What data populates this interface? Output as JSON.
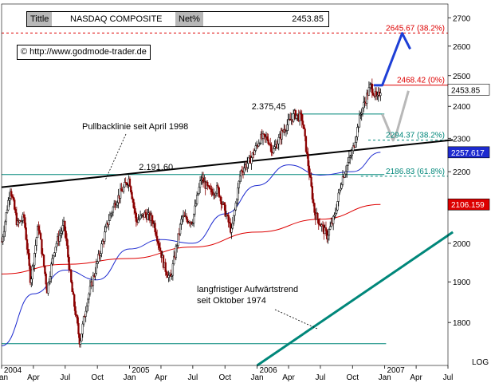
{
  "header": {
    "title_tag": "Tittle",
    "title_name": "NASDAQ COMPOSITE",
    "net_tag": "Net%",
    "last_value": "2453.85"
  },
  "copyright": "© http://www.godmode-trader.de",
  "colors": {
    "candle_up": "#000000",
    "candle_down": "#8b0000",
    "ma_short": "#1e2bd0",
    "ma_long": "#dd0000",
    "trendline": "#000000",
    "long_trend": "#00877a",
    "projection": "#1e3fd6",
    "alt_projection": "#b8b8b8",
    "resistance_target": "#dd0000",
    "fib_lines": "#00877a",
    "axis_text": "#000000"
  },
  "chart_data": {
    "type": "candlestick",
    "title": "NASDAQ COMPOSITE",
    "y_scale": "log",
    "ylim": [
      1700,
      2750
    ],
    "y_ticks": [
      1800,
      1900,
      2000,
      2100,
      2200,
      2300,
      2400,
      2500,
      2600,
      2700
    ],
    "y_tick_labels": [
      "1800",
      "1900",
      "2000",
      "2100",
      "2200",
      "2300",
      "2400",
      "2500",
      "2600",
      "2700"
    ],
    "y_axis_extra_label": "LOG",
    "x_range": [
      "2004-01",
      "2007-07"
    ],
    "x_ticks": [
      {
        "date": "2004-01",
        "label": "Jan",
        "year": "2004"
      },
      {
        "date": "2004-04",
        "label": "Apr"
      },
      {
        "date": "2004-07",
        "label": "Jul"
      },
      {
        "date": "2004-10",
        "label": "Oct"
      },
      {
        "date": "2005-01",
        "label": "Jan",
        "year": "2005"
      },
      {
        "date": "2005-04",
        "label": "Apr"
      },
      {
        "date": "2005-07",
        "label": "Jul"
      },
      {
        "date": "2005-10",
        "label": "Oct"
      },
      {
        "date": "2006-01",
        "label": "Jan",
        "year": "2006"
      },
      {
        "date": "2006-04",
        "label": "Apr"
      },
      {
        "date": "2006-07",
        "label": "Jul"
      },
      {
        "date": "2006-10",
        "label": "Oct"
      },
      {
        "date": "2007-01",
        "label": "Jan",
        "year": "2007"
      },
      {
        "date": "2007-04",
        "label": "Apr"
      },
      {
        "date": "2007-07",
        "label": "Jul"
      }
    ],
    "price_path": [
      [
        "2004-01-02",
        2005
      ],
      [
        "2004-01-26",
        2153
      ],
      [
        "2004-02-15",
        2050
      ],
      [
        "2004-03-05",
        2070
      ],
      [
        "2004-03-24",
        1900
      ],
      [
        "2004-04-15",
        2050
      ],
      [
        "2004-05-10",
        1880
      ],
      [
        "2004-06-01",
        1990
      ],
      [
        "2004-06-28",
        2050
      ],
      [
        "2004-07-20",
        1880
      ],
      [
        "2004-08-12",
        1752
      ],
      [
        "2004-09-01",
        1850
      ],
      [
        "2004-10-01",
        1950
      ],
      [
        "2004-11-01",
        2060
      ],
      [
        "2004-11-20",
        2110
      ],
      [
        "2004-12-31",
        2180
      ],
      [
        "2005-01-20",
        2060
      ],
      [
        "2005-02-15",
        2080
      ],
      [
        "2005-03-10",
        2060
      ],
      [
        "2005-04-10",
        1940
      ],
      [
        "2005-04-28",
        1905
      ],
      [
        "2005-05-31",
        2070
      ],
      [
        "2005-06-30",
        2060
      ],
      [
        "2005-07-25",
        2180
      ],
      [
        "2005-08-20",
        2140
      ],
      [
        "2005-09-10",
        2150
      ],
      [
        "2005-10-20",
        2030
      ],
      [
        "2005-11-15",
        2200
      ],
      [
        "2005-12-15",
        2240
      ],
      [
        "2006-01-10",
        2300
      ],
      [
        "2006-01-31",
        2300
      ],
      [
        "2006-02-15",
        2260
      ],
      [
        "2006-03-20",
        2330
      ],
      [
        "2006-04-19",
        2375
      ],
      [
        "2006-05-10",
        2360
      ],
      [
        "2006-06-01",
        2180
      ],
      [
        "2006-06-15",
        2080
      ],
      [
        "2006-07-20",
        2020
      ],
      [
        "2006-08-10",
        2070
      ],
      [
        "2006-09-01",
        2180
      ],
      [
        "2006-10-01",
        2260
      ],
      [
        "2006-10-25",
        2380
      ],
      [
        "2006-11-22",
        2468
      ],
      [
        "2006-12-10",
        2420
      ],
      [
        "2006-12-20",
        2453.85
      ]
    ],
    "moving_averages": [
      {
        "name": "short MA",
        "color": "#1e2bd0",
        "points": [
          [
            "2004-01-01",
            1745
          ],
          [
            "2004-04-01",
            1870
          ],
          [
            "2004-07-01",
            1930
          ],
          [
            "2004-10-01",
            1905
          ],
          [
            "2005-01-01",
            1985
          ],
          [
            "2005-04-01",
            2010
          ],
          [
            "2005-07-01",
            2000
          ],
          [
            "2005-10-01",
            2080
          ],
          [
            "2006-01-01",
            2160
          ],
          [
            "2006-04-01",
            2220
          ],
          [
            "2006-07-01",
            2190
          ],
          [
            "2006-10-01",
            2200
          ],
          [
            "2006-12-20",
            2257.617
          ]
        ]
      },
      {
        "name": "long MA",
        "color": "#dd0000",
        "points": [
          [
            "2004-01-01",
            1920
          ],
          [
            "2004-07-01",
            1945
          ],
          [
            "2005-01-01",
            1960
          ],
          [
            "2005-07-01",
            1990
          ],
          [
            "2006-01-01",
            2030
          ],
          [
            "2006-07-01",
            2065
          ],
          [
            "2006-12-20",
            2106.159
          ]
        ]
      }
    ],
    "axis_value_tags": [
      {
        "label": "2453.85",
        "value": 2453.85,
        "bg": "#ffffff",
        "fg": "#000000"
      },
      {
        "label": "2257.617",
        "value": 2257.617,
        "bg": "#1e2bd0",
        "fg": "#ffffff"
      },
      {
        "label": "2106.159",
        "value": 2106.159,
        "bg": "#dd0000",
        "fg": "#ffffff"
      }
    ],
    "horizontal_levels": [
      {
        "label": "2645.67 (38.2%)",
        "value": 2645.67,
        "color": "#dd0000",
        "style": "dashed",
        "from": "2004-01-01"
      },
      {
        "label": "2468.42 (0%)",
        "value": 2468.42,
        "color": "#dd0000",
        "style": "solid",
        "from": "2006-11-20"
      },
      {
        "label": "2294.37 (38.2%)",
        "value": 2294.37,
        "color": "#00877a",
        "style": "dashed",
        "from": "2006-11-15"
      },
      {
        "label": "2186.83 (61.8%)",
        "value": 2186.83,
        "color": "#00877a",
        "style": "dashed",
        "from": "2006-10-25"
      }
    ],
    "resistance_lines": [
      {
        "label": "2.375,45",
        "value": 2375.45,
        "from": "2006-04-10",
        "to": "2006-12-31"
      },
      {
        "label": "2.191,60",
        "value": 2191.6,
        "from": "2004-01-01",
        "to": "2006-12-31"
      }
    ],
    "bottom_line": {
      "value": 1750,
      "from": "2004-01-01",
      "to": "2007-01-05"
    },
    "trendlines": [
      {
        "label": "Pullbacklinie seit April 1998",
        "color": "#000000",
        "from": [
          "2004-01-01",
          2155
        ],
        "to": [
          "2007-07-15",
          2295
        ]
      },
      {
        "label": "langfristiger Aufwärtstrend seit Oktober 1974",
        "color": "#00877a",
        "from": [
          "2006-01-01",
          1700
        ],
        "to": [
          "2007-07-15",
          2030
        ]
      }
    ],
    "projections": [
      {
        "name": "blue scenario",
        "color": "#1e3fd6",
        "points": [
          [
            "2006-12-01",
            2468
          ],
          [
            "2006-12-25",
            2468
          ],
          [
            "2007-02-20",
            2645
          ],
          [
            "2007-03-15",
            2590
          ]
        ]
      },
      {
        "name": "grey scenario",
        "color": "#b8b8b8",
        "points": [
          [
            "2006-12-25",
            2375
          ],
          [
            "2007-01-25",
            2294
          ],
          [
            "2007-02-05",
            2320
          ],
          [
            "2007-03-10",
            2450
          ]
        ]
      }
    ]
  }
}
